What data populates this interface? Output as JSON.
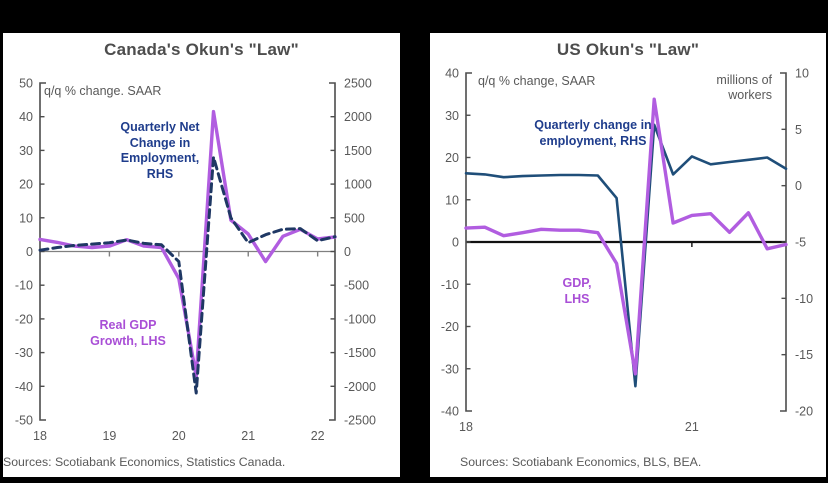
{
  "window": {
    "background": "#000000",
    "panel_background": "#ffffff"
  },
  "colors": {
    "title_text": "#4d4d4d",
    "axis_text": "#595959",
    "axis_line": "#4d4d4d",
    "purple_line": "#b15de0",
    "navy_line": "#1f3864",
    "us_blue_line": "#1f4e79",
    "navy_label": "#1f3d8c",
    "purple_label": "#a94fd6",
    "canada_zero_line": "#808080",
    "us_zero_line": "#111111"
  },
  "chart_data": [
    {
      "type": "line",
      "title": "Canada's Okun's \"Law\"",
      "annotation": "q/q % change. SAAR",
      "source": "Sources: Scotiabank Economics, Statistics Canada.",
      "x": [
        "2018Q1",
        "2018Q2",
        "2018Q3",
        "2018Q4",
        "2019Q1",
        "2019Q2",
        "2019Q3",
        "2019Q4",
        "2020Q1",
        "2020Q2",
        "2020Q3",
        "2020Q4",
        "2021Q1",
        "2021Q2",
        "2021Q3",
        "2021Q4",
        "2022Q1",
        "2022Q2"
      ],
      "x_tick_labels": [
        "18",
        "19",
        "20",
        "21",
        "22"
      ],
      "x_tick_indices": [
        0,
        4,
        8,
        12,
        16
      ],
      "left_axis": {
        "min": -50,
        "max": 50,
        "ticks": [
          50,
          40,
          30,
          20,
          10,
          0,
          -10,
          -20,
          -30,
          -40,
          -50
        ]
      },
      "right_axis": {
        "min": -2500,
        "max": 2500,
        "ticks": [
          2500,
          2000,
          1500,
          1000,
          500,
          0,
          -500,
          -1000,
          -1500,
          -2000,
          -2500
        ]
      },
      "series": [
        {
          "name": "real-gdp-growth-lhs",
          "label": "Real GDP\nGrowth, LHS",
          "axis": "left",
          "line": "solid",
          "color_key": "purple_line",
          "values": [
            3.6,
            2.7,
            1.6,
            1.2,
            1.6,
            3.5,
            1.6,
            1.2,
            -8.0,
            -37.0,
            41.5,
            9.3,
            5.2,
            -3.0,
            4.5,
            6.6,
            3.7,
            4.3
          ]
        },
        {
          "name": "employment-net-change-rhs",
          "label": "Quarterly Net\nChange in\nEmployment,\nRHS",
          "axis": "right",
          "line": "dashed",
          "color_key": "navy_line",
          "values": [
            20,
            60,
            90,
            110,
            130,
            170,
            120,
            100,
            -150,
            -2100,
            1400,
            500,
            130,
            250,
            330,
            340,
            160,
            220
          ]
        }
      ]
    },
    {
      "type": "line",
      "title": "US Okun's \"Law\"",
      "annotation": "q/q % change, SAAR",
      "right_annotation": "millions of\nworkers",
      "source": "Sources: Scotiabank Economics, BLS, BEA.",
      "x": [
        "2018Q1",
        "2018Q2",
        "2018Q3",
        "2018Q4",
        "2019Q1",
        "2019Q2",
        "2019Q3",
        "2019Q4",
        "2020Q1",
        "2020Q2",
        "2020Q3",
        "2020Q4",
        "2021Q1",
        "2021Q2",
        "2021Q3",
        "2021Q4",
        "2022Q1",
        "2022Q2"
      ],
      "x_tick_labels": [
        "18",
        "21"
      ],
      "x_tick_indices": [
        0,
        12
      ],
      "left_axis": {
        "min": -40,
        "max": 40,
        "ticks": [
          40,
          30,
          20,
          10,
          0,
          -10,
          -20,
          -30,
          -40
        ]
      },
      "right_axis": {
        "min": -20,
        "max": 10,
        "ticks": [
          10,
          5,
          0,
          -5,
          -10,
          -15,
          -20
        ]
      },
      "series": [
        {
          "name": "us-employment-change-rhs",
          "label": "Quarterly change in\nemployment, RHS",
          "axis": "right",
          "line": "solid",
          "color_key": "us_blue_line",
          "values": [
            1.1,
            1.0,
            0.75,
            0.85,
            0.9,
            0.95,
            0.95,
            0.9,
            -1.1,
            -17.8,
            5.4,
            1.0,
            2.6,
            1.9,
            2.1,
            2.3,
            2.5,
            1.5
          ]
        },
        {
          "name": "us-gdp-lhs",
          "label": "GDP,\nLHS",
          "axis": "left",
          "line": "solid",
          "color_key": "purple_line",
          "values": [
            3.3,
            3.5,
            1.5,
            2.2,
            3.0,
            2.8,
            2.8,
            2.2,
            -5.1,
            -31.2,
            33.8,
            4.5,
            6.3,
            6.7,
            2.3,
            6.9,
            -1.6,
            -0.6
          ]
        }
      ]
    }
  ]
}
